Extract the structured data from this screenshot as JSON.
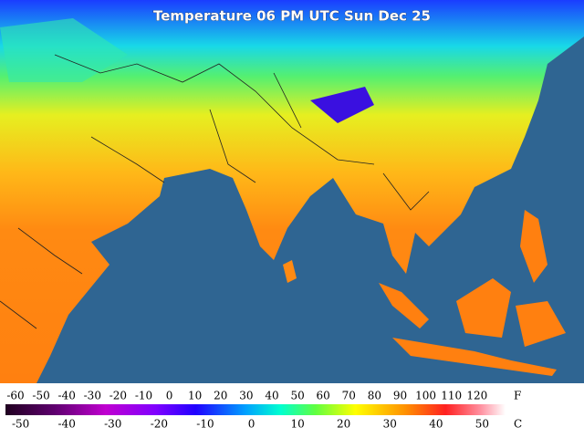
{
  "title": "Temperature 06 PM UTC Sun Dec 25",
  "legend": {
    "fahrenheit_unit": "F",
    "celsius_unit": "C",
    "fahrenheit_ticks": [
      -60,
      -50,
      -40,
      -30,
      -20,
      -10,
      0,
      10,
      20,
      30,
      40,
      50,
      60,
      70,
      80,
      90,
      100,
      110,
      120
    ],
    "celsius_ticks": [
      -50,
      -40,
      -30,
      -20,
      -10,
      0,
      10,
      20,
      30,
      40,
      50
    ]
  }
}
